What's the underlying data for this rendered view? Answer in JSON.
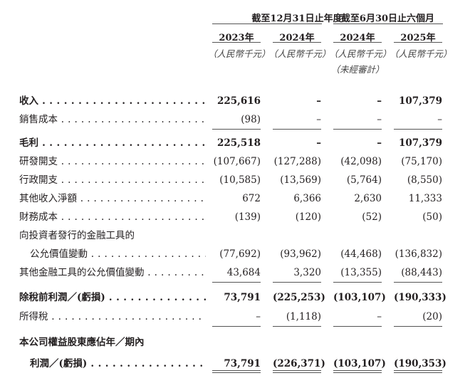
{
  "header": {
    "group1": "截至12月31日止年度",
    "group2": "截至6月30日止六個月",
    "years": [
      "2023年",
      "2024年",
      "2024年",
      "2025年"
    ],
    "unit": "（人民幣千元）",
    "unaudited": "（未經審計）"
  },
  "rows": [
    {
      "label": "收入",
      "bold": true,
      "values": [
        "225,616",
        "–",
        "–",
        "107,379"
      ]
    },
    {
      "label": "銷售成本",
      "values": [
        "(98)",
        "–",
        "–",
        "–"
      ]
    },
    {
      "label": "毛利",
      "bold": true,
      "values": [
        "225,518",
        "–",
        "–",
        "107,379"
      ]
    },
    {
      "label": "研發開支",
      "values": [
        "(107,667)",
        "(127,288)",
        "(42,098)",
        "(75,170)"
      ]
    },
    {
      "label": "行政開支",
      "values": [
        "(10,585)",
        "(13,569)",
        "(5,764)",
        "(8,550)"
      ]
    },
    {
      "label": "其他收入淨額",
      "values": [
        "672",
        "6,366",
        "2,630",
        "11,333"
      ]
    },
    {
      "label": "財務成本",
      "values": [
        "(139)",
        "(120)",
        "(52)",
        "(50)"
      ]
    },
    {
      "label": "向投資者發行的金融工具的"
    },
    {
      "label": "公允價值變動",
      "values": [
        "(77,692)",
        "(93,962)",
        "(44,468)",
        "(136,832)"
      ]
    },
    {
      "label": "其他金融工具的公允價值變動",
      "values": [
        "43,684",
        "3,320",
        "(13,355)",
        "(88,443)"
      ]
    },
    {
      "label": "除稅前利潤／(虧損)",
      "bold": true,
      "values": [
        "73,791",
        "(225,253)",
        "(103,107)",
        "(190,333)"
      ]
    },
    {
      "label": "所得稅",
      "values": [
        "–",
        "(1,118)",
        "–",
        "(20)"
      ]
    },
    {
      "label": "本公司權益股東應佔年／期內",
      "bold": true
    },
    {
      "label": "利潤／(虧損)",
      "bold": true,
      "values": [
        "73,791",
        "(226,371)",
        "(103,107)",
        "(190,353)"
      ]
    }
  ]
}
